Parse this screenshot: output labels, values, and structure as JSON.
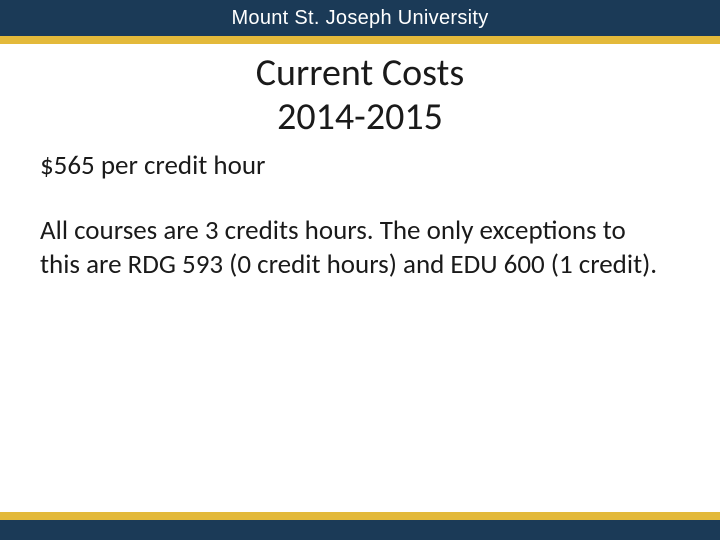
{
  "header": {
    "institution": "Mount St. Joseph University",
    "band_color": "#1b3a57",
    "accent_color": "#e3b93a",
    "text_color": "#ffffff"
  },
  "slide": {
    "title_line1": "Current Costs",
    "title_line2": "2014-2015",
    "cost_line": "$565 per credit hour",
    "body": "All courses are 3 credits hours. The only exceptions to this are RDG 593 (0 credit hours) and EDU 600 (1 credit).",
    "title_fontsize": 38,
    "body_fontsize": 27,
    "text_color": "#1a1a1a",
    "background_color": "#ffffff"
  }
}
